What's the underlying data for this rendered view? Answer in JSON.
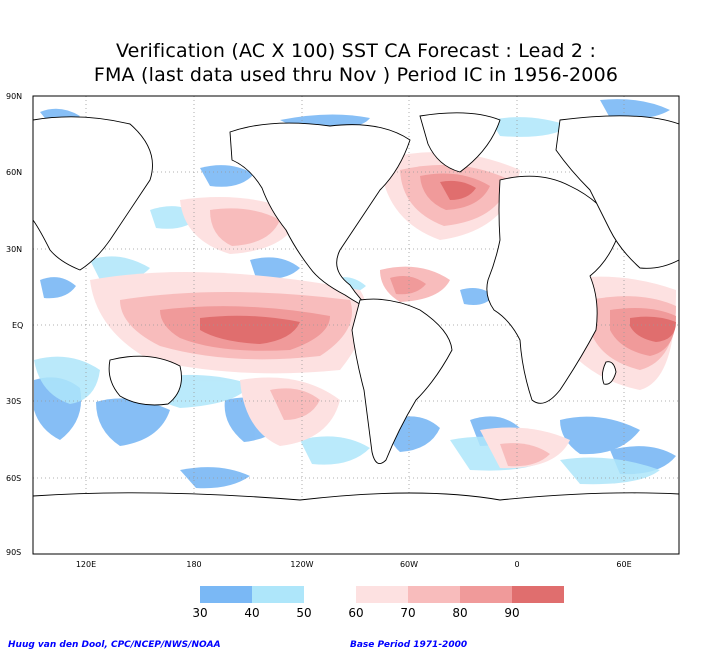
{
  "title_line1": "Verification (AC X 100) SST CA Forecast : Lead 2 :",
  "title_line2": "FMA (last data used thru Nov ) Period IC in 1956-2006",
  "lat_labels": [
    "90N",
    "60N",
    "30N",
    "EQ",
    "30S",
    "60S",
    "90S"
  ],
  "lon_labels": [
    "120E",
    "180",
    "120W",
    "60W",
    "0",
    "60E"
  ],
  "legend": {
    "labels": [
      "30",
      "40",
      "50",
      "60",
      "70",
      "80",
      "90"
    ],
    "colors": [
      "#7ab8f5",
      "#aee6fa",
      "#ffffff",
      "#fde1e1",
      "#f8bcbc",
      "#f09a9a",
      "#e06e6e"
    ]
  },
  "footer_left": "Huug van den Dool, CPC/NCEP/NWS/NOAA",
  "footer_right": "Base Period 1971-2000"
}
